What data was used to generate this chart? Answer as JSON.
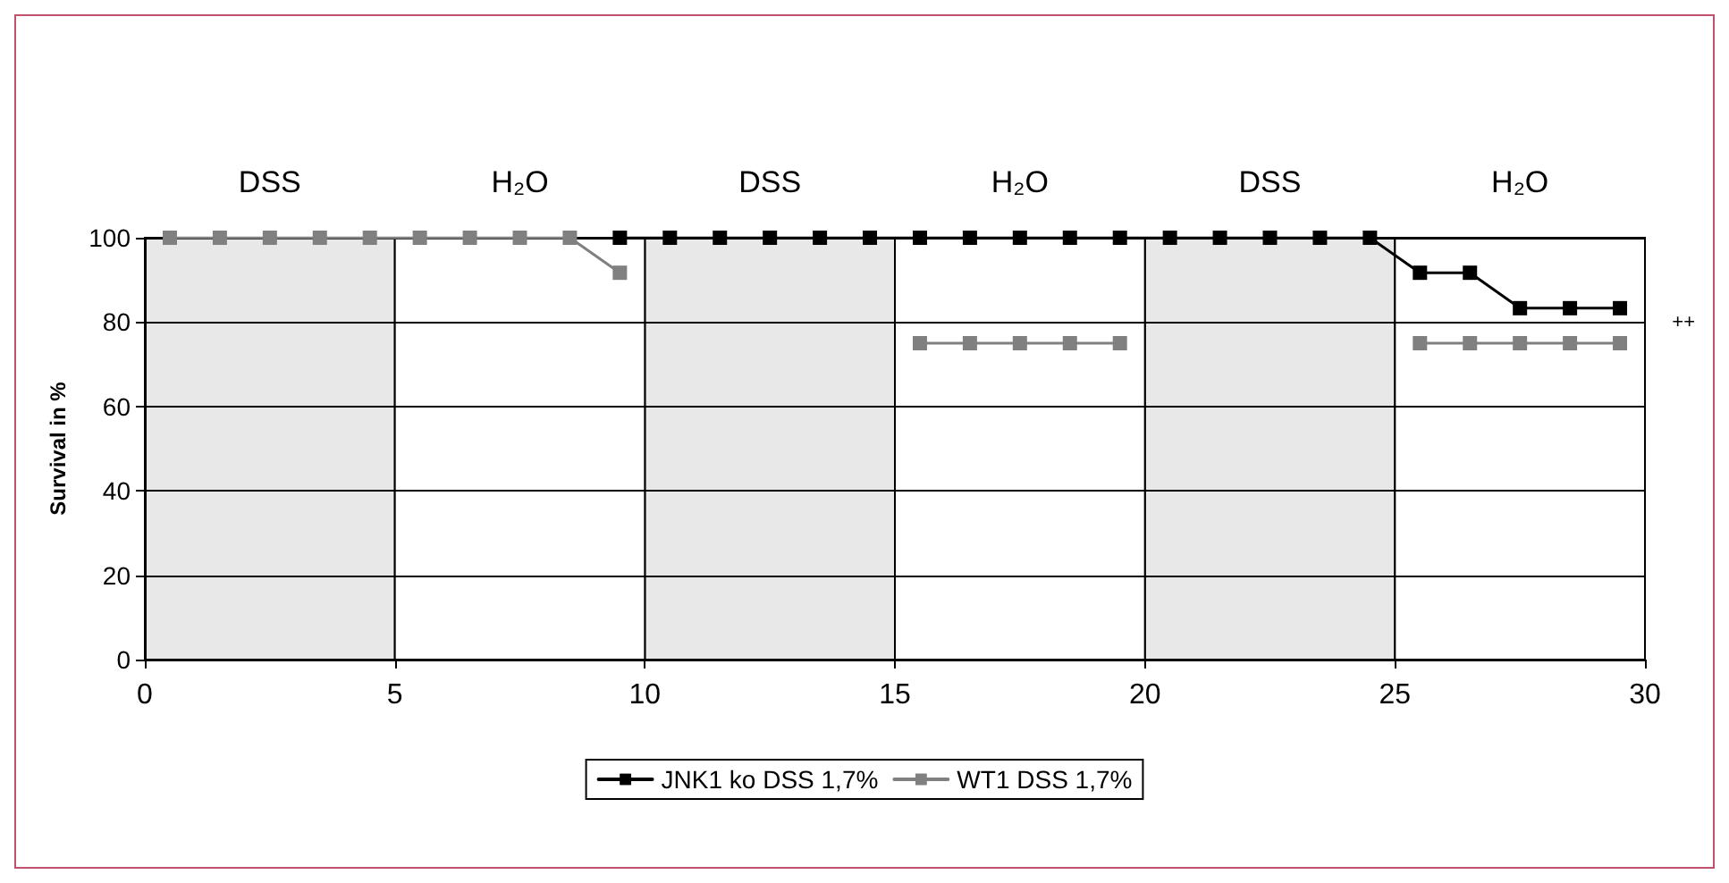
{
  "chart_data": {
    "type": "line",
    "ylabel": "Survival in %",
    "x": [
      0.5,
      1.5,
      2.5,
      3.5,
      4.5,
      5.5,
      6.5,
      7.5,
      8.5,
      9.5,
      10.5,
      11.5,
      12.5,
      13.5,
      14.5,
      15.5,
      16.5,
      17.5,
      18.5,
      19.5,
      20.5,
      21.5,
      22.5,
      23.5,
      24.5,
      25.5,
      26.5,
      27.5,
      28.5,
      29.5
    ],
    "series": [
      {
        "name": "JNK1 ko DSS 1,7%",
        "color": "#000000",
        "values": [
          null,
          null,
          null,
          null,
          null,
          null,
          null,
          null,
          null,
          100,
          100,
          100,
          100,
          100,
          100,
          100,
          100,
          100,
          100,
          100,
          100,
          100,
          100,
          100,
          100,
          91.7,
          91.7,
          83.3,
          83.3,
          83.3
        ]
      },
      {
        "name": "WT1 DSS 1,7%",
        "color": "#808080",
        "values": [
          100,
          100,
          100,
          100,
          100,
          100,
          100,
          100,
          100,
          91.7,
          null,
          null,
          null,
          null,
          null,
          75,
          75,
          75,
          75,
          75,
          null,
          null,
          null,
          null,
          null,
          75,
          75,
          75,
          75,
          75
        ]
      }
    ],
    "xlim": [
      0,
      30
    ],
    "xticks": [
      0,
      5,
      10,
      15,
      20,
      25,
      30
    ],
    "ylim": [
      0,
      100
    ],
    "yticks": [
      0,
      20,
      40,
      60,
      80,
      100
    ],
    "bands": [
      {
        "axis": "x",
        "from": 0,
        "to": 5,
        "label": "DSS",
        "color": "#e8e8e8"
      },
      {
        "axis": "x",
        "from": 5,
        "to": 10,
        "label": "H₂O",
        "color": "#ffffff"
      },
      {
        "axis": "x",
        "from": 10,
        "to": 15,
        "label": "DSS",
        "color": "#e8e8e8"
      },
      {
        "axis": "x",
        "from": 15,
        "to": 20,
        "label": "H₂O",
        "color": "#ffffff"
      },
      {
        "axis": "x",
        "from": 20,
        "to": 25,
        "label": "DSS",
        "color": "#e8e8e8"
      },
      {
        "axis": "x",
        "from": 25,
        "to": 30,
        "label": "H₂O",
        "color": "#ffffff"
      }
    ],
    "annotations": [
      "++"
    ],
    "grid": "y",
    "legend": "bottom",
    "marker": "square",
    "line_style": "solid"
  }
}
